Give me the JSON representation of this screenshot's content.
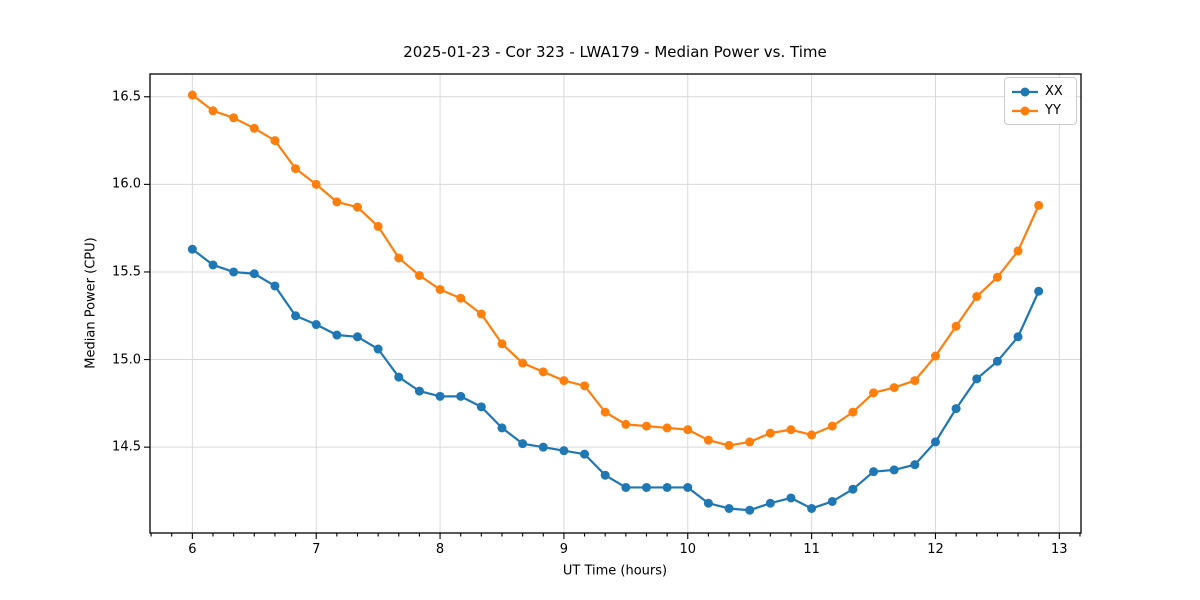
{
  "chart_data": {
    "type": "line",
    "title": "2025-01-23 - Cor 323 - LWA179 - Median Power vs. Time",
    "xlabel": "UT Time (hours)",
    "ylabel": "Median Power (CPU)",
    "grid": true,
    "legend_position": "upper right",
    "xlim": [
      5.658,
      13.175
    ],
    "ylim": [
      14.01,
      16.63
    ],
    "xticks": [
      {
        "v": 6,
        "label": "6"
      },
      {
        "v": 7,
        "label": "7"
      },
      {
        "v": 8,
        "label": "8"
      },
      {
        "v": 9,
        "label": "9"
      },
      {
        "v": 10,
        "label": "10"
      },
      {
        "v": 11,
        "label": "11"
      },
      {
        "v": 12,
        "label": "12"
      },
      {
        "v": 13,
        "label": "13"
      }
    ],
    "yticks": [
      {
        "v": 14.5,
        "label": "14.5"
      },
      {
        "v": 15.0,
        "label": "15.0"
      },
      {
        "v": 15.5,
        "label": "15.5"
      },
      {
        "v": 16.0,
        "label": "16.0"
      },
      {
        "v": 16.5,
        "label": "16.5"
      }
    ],
    "x_minor_step": 0.166667,
    "x": [
      6.0,
      6.1667,
      6.3333,
      6.5,
      6.6667,
      6.8333,
      7.0,
      7.1667,
      7.3333,
      7.5,
      7.6667,
      7.8333,
      8.0,
      8.1667,
      8.3333,
      8.5,
      8.6667,
      8.8333,
      9.0,
      9.1667,
      9.3333,
      9.5,
      9.6667,
      9.8333,
      10.0,
      10.1667,
      10.3333,
      10.5,
      10.6667,
      10.8333,
      11.0,
      11.1667,
      11.3333,
      11.5,
      11.6667,
      11.8333,
      12.0,
      12.1667,
      12.3333,
      12.5,
      12.6667,
      12.8333
    ],
    "series": [
      {
        "name": "XX",
        "color": "#1f77b4",
        "values": [
          15.63,
          15.54,
          15.5,
          15.49,
          15.42,
          15.25,
          15.2,
          15.14,
          15.13,
          15.06,
          14.9,
          14.82,
          14.79,
          14.79,
          14.73,
          14.61,
          14.52,
          14.5,
          14.48,
          14.46,
          14.34,
          14.27,
          14.27,
          14.27,
          14.27,
          14.18,
          14.15,
          14.14,
          14.18,
          14.21,
          14.15,
          14.19,
          14.26,
          14.36,
          14.37,
          14.4,
          14.53,
          14.72,
          14.89,
          14.99,
          15.13,
          15.39
        ]
      },
      {
        "name": "YY",
        "color": "#ff7f0e",
        "values": [
          16.51,
          16.42,
          16.38,
          16.32,
          16.25,
          16.09,
          16.0,
          15.9,
          15.87,
          15.76,
          15.58,
          15.48,
          15.4,
          15.35,
          15.26,
          15.09,
          14.98,
          14.93,
          14.88,
          14.85,
          14.7,
          14.63,
          14.62,
          14.61,
          14.6,
          14.54,
          14.51,
          14.53,
          14.58,
          14.6,
          14.57,
          14.62,
          14.7,
          14.81,
          14.84,
          14.88,
          15.02,
          15.19,
          15.36,
          15.47,
          15.62,
          15.88
        ]
      }
    ],
    "style": {
      "grid_color": "#d9d9d9",
      "spine_color": "#000000",
      "marker_radius": 4.5,
      "line_width": 2.2
    }
  }
}
